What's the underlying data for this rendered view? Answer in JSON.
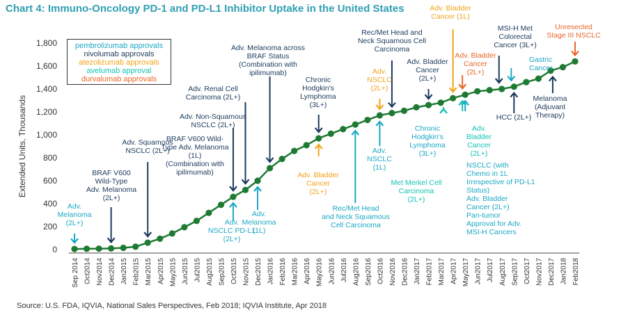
{
  "chart_data": {
    "type": "line",
    "title": "Chart 4: Immuno-Oncology PD-1 and PD-L1 Inhibitor Uptake in the United States",
    "xlabel": "",
    "ylabel": "Extended Units, Thousands",
    "ylim": [
      0,
      1800
    ],
    "yticks": [
      0,
      200,
      400,
      600,
      800,
      1000,
      1200,
      1400,
      1600,
      1800
    ],
    "ytick_labels": [
      "0",
      "200",
      "400",
      "600",
      "800",
      "1,000",
      "1,200",
      "1,400",
      "1,600",
      "1,800"
    ],
    "grid": false,
    "categories": [
      "Sep2014",
      "Oct2014",
      "Nov2014",
      "Dec2014",
      "Jan2015",
      "Feb2015",
      "Mar2015",
      "Apr2015",
      "May2015",
      "Jun2015",
      "Jul2015",
      "Aug2015",
      "Sep2015",
      "Oct2015",
      "Nov2015",
      "Dec2015",
      "Jan2016",
      "Feb2016",
      "Mar2016",
      "Apr2016",
      "May2016",
      "Jun2016",
      "Jul2016",
      "Aug2016",
      "Sep2016",
      "Oct2016",
      "Nov2016",
      "Dec2016",
      "Jan2017",
      "Feb2017",
      "Mar2017",
      "Apr2017",
      "May2017",
      "Jun2017",
      "Jul2017",
      "Aug2017",
      "Sep2017",
      "Oct2017",
      "Nov2017",
      "Dec2017",
      "Jan2018",
      "Feb2018"
    ],
    "tick_labels": [
      "Sep 2014",
      "Oct2014",
      "Nov2014",
      "Dec2014",
      "Jan2015",
      "Feb2015",
      "Mar2015",
      "Apr2015",
      "May2015",
      "Jun2015",
      "Jul2015",
      "Aug2015",
      "Sep2015",
      "Oct2015",
      "Nov2015",
      "Dec2015",
      "Jan2016",
      "Feb2016",
      "Mar2016",
      "Apr2016",
      "May2016",
      "Jun2016",
      "Jul2016",
      "Aug2016",
      "Sep2016",
      "Oct2016",
      "Nov2016",
      "Dec2016",
      "Jan2017",
      "Feb2017",
      "Mar2017",
      "Apr2017",
      "May2017",
      "Jun2017",
      "Jul2017",
      "Aug2017",
      "Sep2017",
      "Oct2017",
      "Nov2017",
      "Dec2017",
      "Jan2018",
      "Feb2018"
    ],
    "series": [
      {
        "color": "#1e7a32",
        "values": [
          5,
          7,
          8,
          10,
          15,
          25,
          60,
          95,
          140,
          195,
          250,
          320,
          390,
          460,
          520,
          600,
          710,
          790,
          860,
          910,
          970,
          1010,
          1050,
          1090,
          1130,
          1170,
          1190,
          1210,
          1240,
          1260,
          1280,
          1320,
          1350,
          1380,
          1390,
          1400,
          1420,
          1460,
          1490,
          1560,
          1590,
          1640
        ]
      }
    ],
    "legend": {
      "position": "top-left",
      "entries": [
        {
          "label": "pembrolizumab approvals",
          "color": "#1ba8c4"
        },
        {
          "label": "nivolumab approvals",
          "color": "#1b3a5c"
        },
        {
          "label": "atezolizumab approvals",
          "color": "#f2a31b"
        },
        {
          "label": "avelumab approval",
          "color": "#14c3b5"
        },
        {
          "label": "durvalumab approvals",
          "color": "#e8672a"
        }
      ]
    },
    "annotations": [
      {
        "month": 0,
        "drug": "pembrolizumab",
        "color": "#1ba8c4",
        "lines": [
          "Adv.",
          "Melanoma",
          "(2L+)"
        ]
      },
      {
        "month": 3,
        "drug": "nivolumab",
        "color": "#1b3a5c",
        "lines": [
          "BRAF V600",
          "Wild-Type",
          "Adv. Melanoma",
          "(2L+)"
        ]
      },
      {
        "month": 6,
        "drug": "nivolumab",
        "color": "#1b3a5c",
        "lines": [
          "Adv. Squamous",
          "NSCLC (2L+)"
        ]
      },
      {
        "month": 13,
        "drug": "nivolumab",
        "color": "#1b3a5c",
        "lines": [
          "Adv. Non-Squamous",
          "NSCLC (2L+)"
        ]
      },
      {
        "month": 13,
        "drug": "pembrolizumab",
        "color": "#1ba8c4",
        "lines": [
          "Adv.",
          "NSCLC PD-L1",
          "(2L+)"
        ]
      },
      {
        "month": 14,
        "drug": "nivolumab",
        "color": "#1b3a5c",
        "lines": [
          "BRAF V600 Wild-",
          "Type Adv. Melanoma",
          "(1L)",
          "(Combination with",
          "ipilimumab)"
        ]
      },
      {
        "month": 14,
        "drug": "nivolumab",
        "color": "#1b3a5c",
        "lines": [
          "Adv. Renal Cell",
          "Carcinoma (2L+)"
        ]
      },
      {
        "month": 15,
        "drug": "pembrolizumab",
        "color": "#1ba8c4",
        "lines": [
          "Adv.",
          "Melanoma",
          "(1L)"
        ]
      },
      {
        "month": 16,
        "drug": "nivolumab",
        "color": "#1b3a5c",
        "lines": [
          "Adv. Melanoma across",
          "BRAF Status",
          "(Combination with",
          "ipilimumab)"
        ]
      },
      {
        "month": 20,
        "drug": "nivolumab",
        "color": "#1b3a5c",
        "lines": [
          "Chronic",
          "Hodgkin's",
          "Lymphoma",
          "(3L+)"
        ]
      },
      {
        "month": 20,
        "drug": "atezolizumab",
        "color": "#f2a31b",
        "lines": [
          "Adv. Bladder",
          "Cancer",
          "(2L+)"
        ]
      },
      {
        "month": 23,
        "drug": "pembrolizumab",
        "color": "#1ba8c4",
        "lines": [
          "Rec/Met Head",
          "and Neck Squamous",
          "Cell Carcinoma"
        ]
      },
      {
        "month": 25,
        "drug": "atezolizumab",
        "color": "#f2a31b",
        "lines": [
          "Adv.",
          "NSCLC",
          "(2L+)"
        ]
      },
      {
        "month": 25,
        "drug": "pembrolizumab",
        "color": "#1ba8c4",
        "lines": [
          "Adv.",
          "NSCLC",
          "(1L)"
        ]
      },
      {
        "month": 26,
        "drug": "nivolumab",
        "color": "#1b3a5c",
        "lines": [
          "Rec/Met Head and",
          "Neck Squamous Cell",
          "Carcinoma"
        ]
      },
      {
        "month": 29,
        "drug": "nivolumab",
        "color": "#1b3a5c",
        "lines": [
          "Adv. Bladder",
          "Cancer",
          "(2L+)"
        ]
      },
      {
        "month": 30,
        "drug": "pembrolizumab",
        "color": "#1ba8c4",
        "lines": [
          "Chronic",
          "Hodgkin's",
          "Lymphoma",
          "(3L+)"
        ]
      },
      {
        "month": 30,
        "drug": "avelumab",
        "color": "#14c3b5",
        "lines": [
          "Met Merkel Cell",
          "Carcinoma",
          "(2L+)"
        ]
      },
      {
        "month": 31,
        "drug": "atezolizumab",
        "color": "#f2a31b",
        "lines": [
          "Adv. Bladder",
          "Cancer (1L)"
        ]
      },
      {
        "month": 32,
        "drug": "durvalumab",
        "color": "#e8672a",
        "lines": [
          "Adv. Bladder",
          "Cancer",
          "(2L+)"
        ]
      },
      {
        "month": 32,
        "drug": "avelumab",
        "color": "#14c3b5",
        "lines": [
          "Adv.",
          "Bladder",
          "Cancer",
          "(2L+)"
        ]
      },
      {
        "month": 32,
        "drug": "pembrolizumab",
        "color": "#1ba8c4",
        "lines": [
          "NSCLC (with",
          "Chemo in 1L",
          "Irrespective of PD-L1",
          "Status)",
          "Adv. Bladder",
          "Cancer (2L+)",
          "Pan-tumor",
          "Approval for Adv.",
          "MSI-H Cancers"
        ]
      },
      {
        "month": 35,
        "drug": "nivolumab",
        "color": "#1b3a5c",
        "lines": [
          "MSI-H Met",
          "Colorectal",
          "Cancer (3L+)"
        ]
      },
      {
        "month": 36,
        "drug": "nivolumab",
        "color": "#1b3a5c",
        "lines": [
          "HCC (2L+)"
        ]
      },
      {
        "month": 36,
        "drug": "pembrolizumab",
        "color": "#1ba8c4",
        "lines": [
          "Gastric",
          "Cancer"
        ]
      },
      {
        "month": 39,
        "drug": "nivolumab",
        "color": "#1b3a5c",
        "lines": [
          "Melanoma",
          "(Adjuvant",
          "Therapy)"
        ]
      },
      {
        "month": 41,
        "drug": "durvalumab",
        "color": "#e8672a",
        "lines": [
          "Unresected",
          "Stage III NSCLC"
        ]
      }
    ]
  },
  "source": "Source: U.S. FDA, IQVIA, National Sales Perspectives, Feb 2018; IQVIA Institute, Apr 2018"
}
